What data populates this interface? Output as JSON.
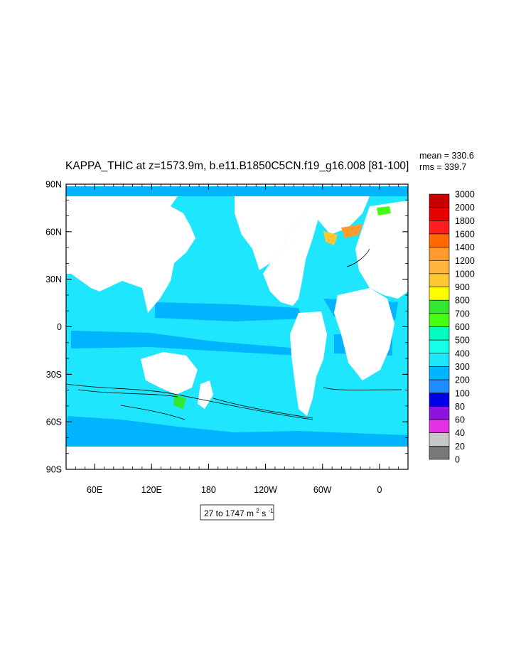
{
  "chart_data": {
    "type": "heatmap",
    "title": "KAPPA_THIC at z=1573.9m, b.e11.B1850C5CN.f19_g16.008 [81-100]",
    "stats": {
      "mean": "mean = 330.6",
      "rms": "rms = 339.7"
    },
    "y_ticks": [
      "90N",
      "60N",
      "30N",
      "0",
      "30S",
      "60S",
      "90S"
    ],
    "x_ticks": [
      "60E",
      "120E",
      "180",
      "120W",
      "60W",
      "0"
    ],
    "range_label": {
      "prefix": "27 to 1747 m",
      "sup1": "2",
      "mid": " s",
      "sup2": "-1"
    },
    "colorbar": {
      "levels": [
        "3000",
        "2000",
        "1800",
        "1600",
        "1400",
        "1200",
        "1000",
        "900",
        "800",
        "700",
        "600",
        "500",
        "400",
        "300",
        "200",
        "100",
        "80",
        "60",
        "40",
        "20",
        "0"
      ],
      "colors": [
        "#c80000",
        "#e60000",
        "#ff1e1e",
        "#ff6a00",
        "#ff9a2e",
        "#ffb43c",
        "#ffc832",
        "#ffff00",
        "#32e632",
        "#46ff14",
        "#00ffbe",
        "#14ffe6",
        "#1ee6ff",
        "#00b4ff",
        "#1e8cff",
        "#0000e6",
        "#8c14dc",
        "#e632e6",
        "#c8c8c8",
        "#787878"
      ]
    },
    "ocean_levels": {
      "base": "#1ee6ff",
      "band": "#00b4ff",
      "land": "#ffffff"
    }
  }
}
